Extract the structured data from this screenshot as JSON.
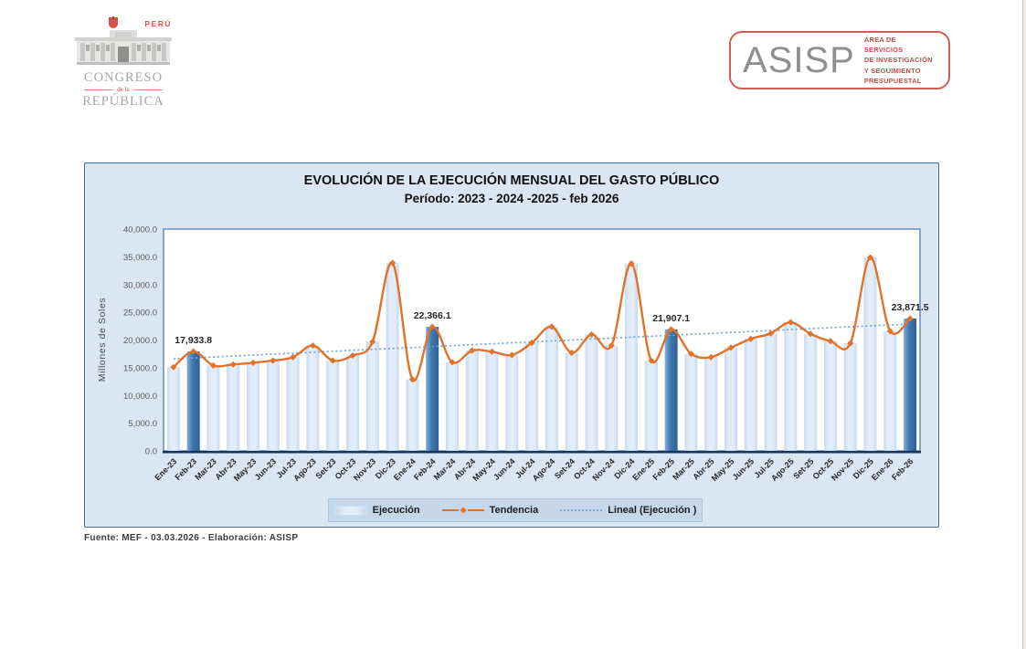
{
  "header": {
    "congreso": {
      "peru": "PERÚ",
      "name": "CONGRESO",
      "dela": "de la",
      "republica": "REPÚBLICA"
    },
    "asisp": {
      "acronym": "ASISP",
      "tagline_lines": [
        "ÁREA DE SERVICIOS",
        "DE INVESTIGACIÓN",
        "Y SEGUIMIENTO",
        "PRESUPUESTAL"
      ]
    }
  },
  "chart": {
    "title": "EVOLUCIÓN DE LA EJECUCIÓN MENSUAL DEL GASTO PÚBLICO",
    "subtitle": "Período: 2023 - 2024 -2025 - feb 2026",
    "y_axis_title": "Millones de Soles",
    "legend": [
      {
        "label": "Ejecución"
      },
      {
        "label": "Tendencia"
      },
      {
        "label": "Lineal (Ejecución )"
      }
    ],
    "footnote": "Fuente: MEF - 03.03.2026 - Elaboración: ASISP"
  },
  "chart_data": {
    "type": "bar",
    "title": "EVOLUCIÓN DE LA EJECUCIÓN MENSUAL DEL GASTO PÚBLICO",
    "subtitle": "Período: 2023 - 2024 -2025 - feb 2026",
    "ylabel": "Millones de Soles",
    "ylim": [
      0,
      40000
    ],
    "ytick_step": 5000,
    "grid": false,
    "legend_position": "bottom",
    "categories": [
      "Ene-23",
      "Feb-23",
      "Mar-23",
      "Abr-23",
      "May-23",
      "Jun-23",
      "Jul-23",
      "Ago-23",
      "Set-23",
      "Oct-23",
      "Nov-23",
      "Dic-23",
      "Ene-24",
      "Feb-24",
      "Mar-24",
      "Abr-24",
      "May-24",
      "Jun-24",
      "Jul-24",
      "Ago-24",
      "Set-24",
      "Oct-24",
      "Nov-24",
      "Dic-24",
      "Ene-25",
      "Feb-25",
      "Mar-25",
      "Abr-25",
      "May-25",
      "Jun-25",
      "Jul-25",
      "Ago-25",
      "Set-25",
      "Oct-25",
      "Nov-25",
      "Dic-25",
      "Ene-26",
      "Feb-26"
    ],
    "series": [
      {
        "name": "Ejecución",
        "type": "bar",
        "values": [
          15100,
          17933.8,
          15400,
          15600,
          15900,
          16300,
          16900,
          19000,
          16300,
          17200,
          19700,
          33900,
          12900,
          22366.1,
          16000,
          18100,
          17900,
          17300,
          19500,
          22400,
          17700,
          21000,
          19000,
          33800,
          16300,
          21907.1,
          17500,
          16900,
          18600,
          20200,
          21200,
          23200,
          21100,
          19800,
          19400,
          34900,
          21600,
          23871.5
        ]
      },
      {
        "name": "Tendencia",
        "type": "smooth_line",
        "values": [
          15100,
          17933.8,
          15400,
          15600,
          15900,
          16300,
          16900,
          19000,
          16300,
          17200,
          19700,
          33900,
          12900,
          22366.1,
          16000,
          18100,
          17900,
          17300,
          19500,
          22400,
          17700,
          21000,
          19000,
          33800,
          16300,
          21907.1,
          17500,
          16900,
          18600,
          20200,
          21200,
          23200,
          21100,
          19800,
          19400,
          34900,
          21600,
          23871.5
        ]
      },
      {
        "name": "Lineal (Ejecución )",
        "type": "linear_trend",
        "start": 16600,
        "end": 22900
      }
    ],
    "highlight_indices": [
      1,
      13,
      25,
      37
    ],
    "annotations": [
      {
        "index": 1,
        "text": "17,933.8"
      },
      {
        "index": 13,
        "text": "22,366.1"
      },
      {
        "index": 25,
        "text": "21,907.1"
      },
      {
        "index": 37,
        "text": "23,871.5"
      }
    ],
    "colors": {
      "container_bg": "#dbe6f3",
      "bar_light_edge": "#c7daee",
      "bar_light_center": "#e3edf8",
      "bar_dark_light": "#7fadd8",
      "bar_dark_deep": "#2d6197",
      "line": "#e0722a",
      "trend": "#76a3d1",
      "axis": "#17355e",
      "plot_border": "#5d82b0",
      "tick_text": "#595959",
      "month_text": "#262626"
    }
  }
}
